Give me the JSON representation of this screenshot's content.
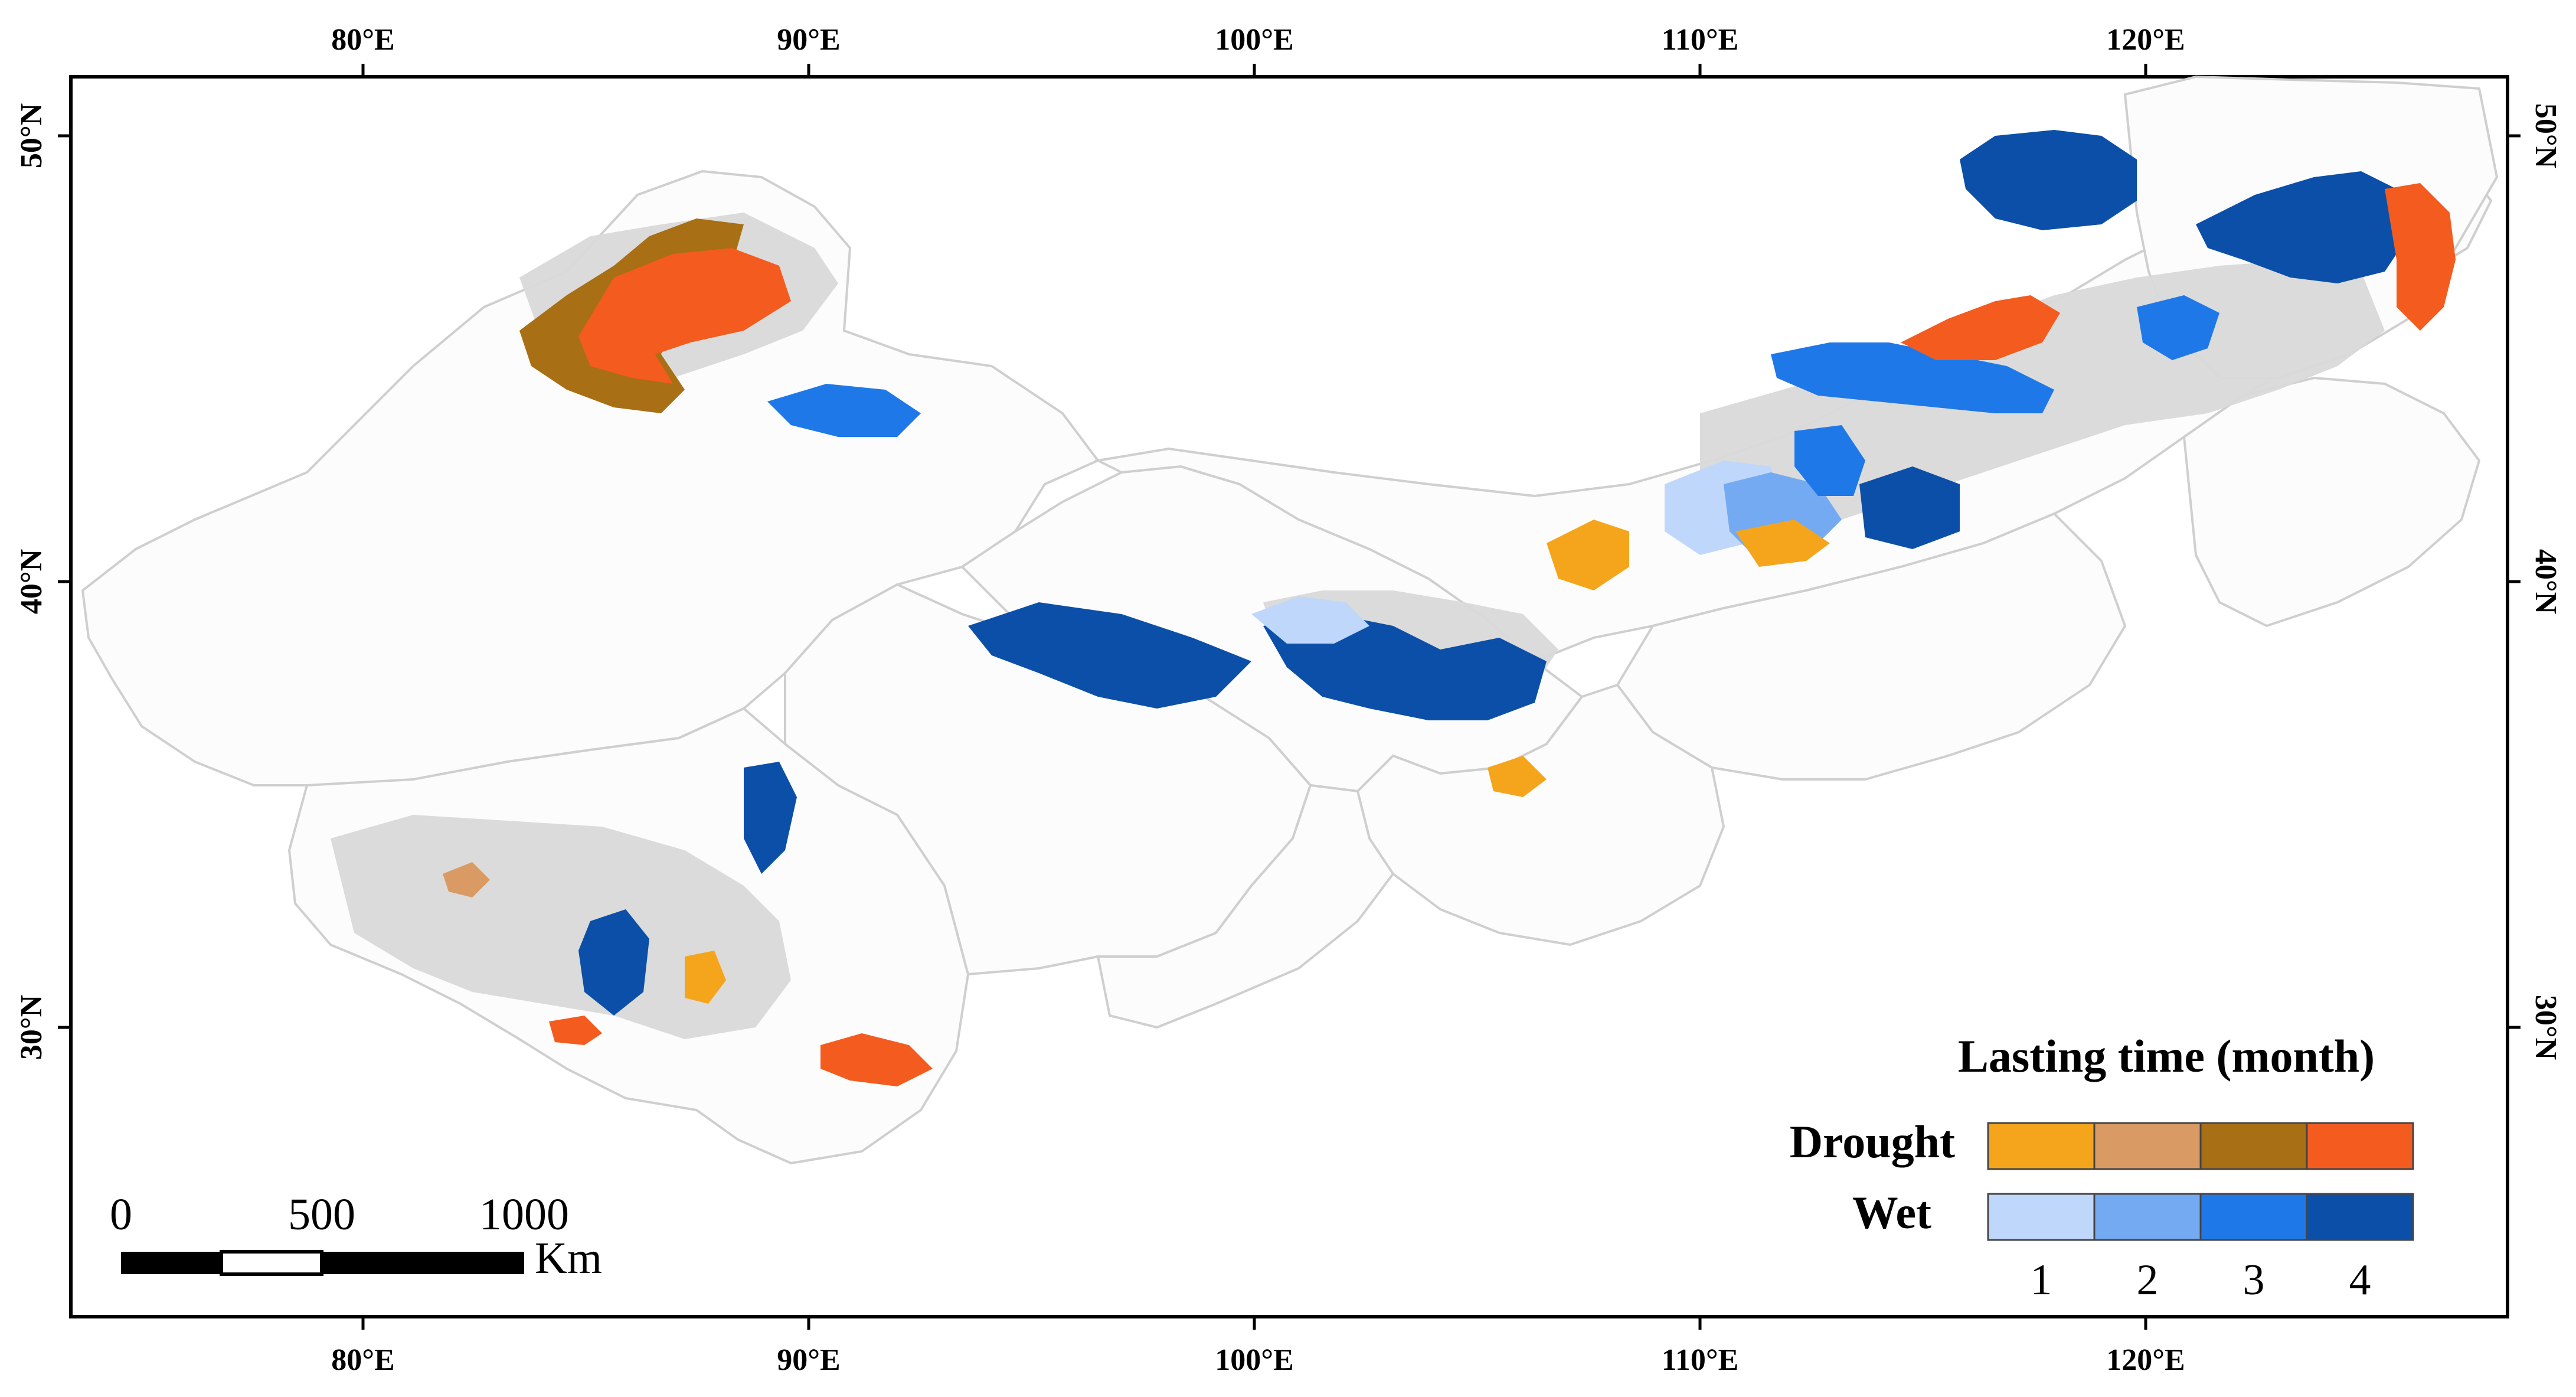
{
  "map": {
    "x_tick_labels": [
      "80°E",
      "90°E",
      "100°E",
      "110°E",
      "120°E"
    ],
    "y_tick_labels": [
      "50°N",
      "40°N",
      "30°N"
    ]
  },
  "legend": {
    "title": "Lasting time (month)",
    "drought_label": "Drought",
    "wet_label": "Wet",
    "class_labels": [
      "1",
      "2",
      "3",
      "4"
    ],
    "drought_colors": [
      "#F5A51B",
      "#D99B63",
      "#A86F14",
      "#F45B1E"
    ],
    "wet_colors": [
      "#BFD7FA",
      "#74AAF2",
      "#1F78E8",
      "#0B4FA8"
    ]
  },
  "scale_bar": {
    "tick_labels": [
      "0",
      "500",
      "1000"
    ],
    "unit": "Km"
  },
  "colors": {
    "no_change_gray": "#D9D9D9",
    "boundary": "#C8C8C8",
    "frame": "#000000"
  }
}
